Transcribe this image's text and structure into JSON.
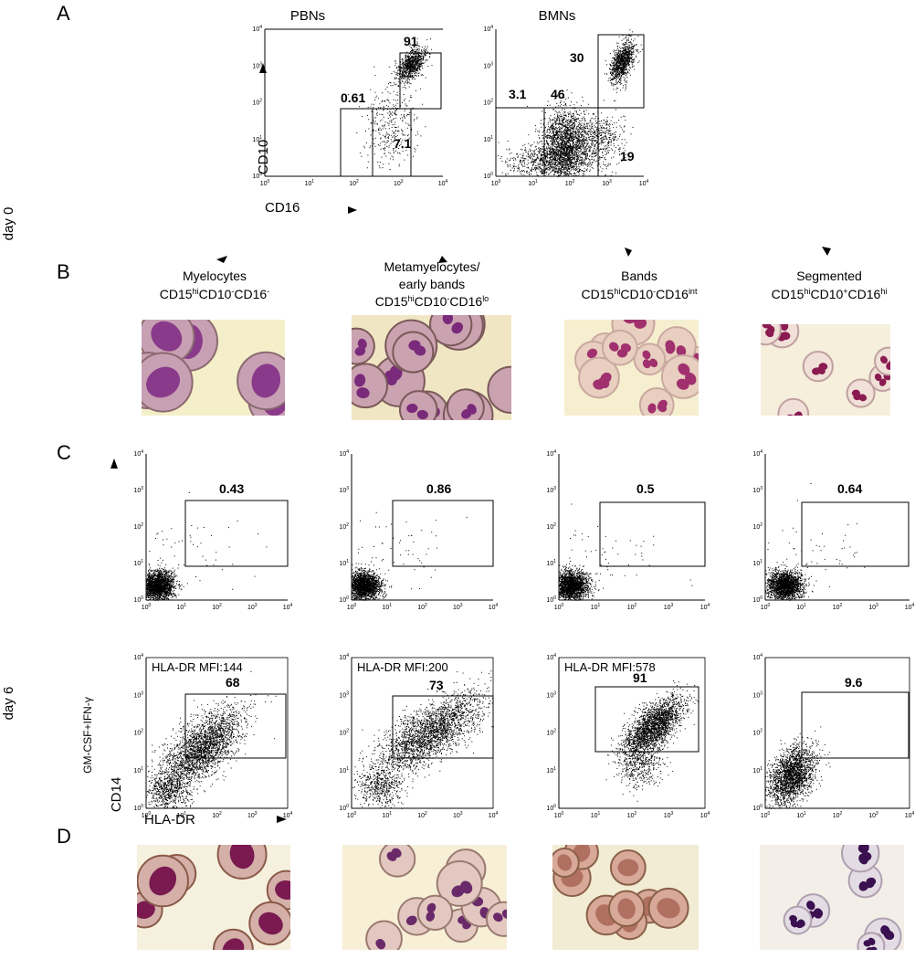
{
  "row_labels": {
    "day0": "day 0",
    "day6": "day 6"
  },
  "tick_base": "10",
  "tick_exponents": [
    "0",
    "1",
    "2",
    "3",
    "4"
  ],
  "panel_a": {
    "label": "A",
    "y_axis": "CD10",
    "x_axis": "CD16",
    "plots": [
      {
        "title": "PBNs",
        "gates": [
          "91",
          "0.61",
          "7.1"
        ]
      },
      {
        "title": "BMNs",
        "gates": [
          "30",
          "3.1",
          "46",
          "19"
        ]
      }
    ]
  },
  "panel_b": {
    "label": "B",
    "populations": [
      {
        "name_lines": [
          "Myelocytes"
        ],
        "phenotype": [
          [
            "CD15",
            "hi"
          ],
          [
            "CD10",
            "-"
          ],
          [
            "CD16",
            "-"
          ]
        ]
      },
      {
        "name_lines": [
          "Metamyelocytes/",
          "early bands"
        ],
        "phenotype": [
          [
            "CD15",
            "hi"
          ],
          [
            "CD10",
            "-"
          ],
          [
            "CD16",
            "lo"
          ]
        ]
      },
      {
        "name_lines": [
          "Bands"
        ],
        "phenotype": [
          [
            "CD15",
            "hi"
          ],
          [
            "CD10",
            "-"
          ],
          [
            "CD16",
            "int"
          ]
        ]
      },
      {
        "name_lines": [
          "Segmented"
        ],
        "phenotype": [
          [
            "CD15",
            "hi"
          ],
          [
            "CD10",
            "+"
          ],
          [
            "CD16",
            "hi"
          ]
        ]
      }
    ]
  },
  "panel_c": {
    "label": "C",
    "stimulus": "GM-CSF+IFN-γ",
    "y_axis": "CD14",
    "x_axis": "HLA-DR",
    "top_gates": [
      "0.43",
      "0.86",
      "0.5",
      "0.64"
    ],
    "bottom_mfi": [
      "HLA-DR MFI:144",
      "HLA-DR MFI:200",
      "HLA-DR MFI:578"
    ],
    "bottom_gates": [
      "68",
      "73",
      "91",
      "9.6"
    ]
  },
  "panel_d": {
    "label": "D"
  }
}
